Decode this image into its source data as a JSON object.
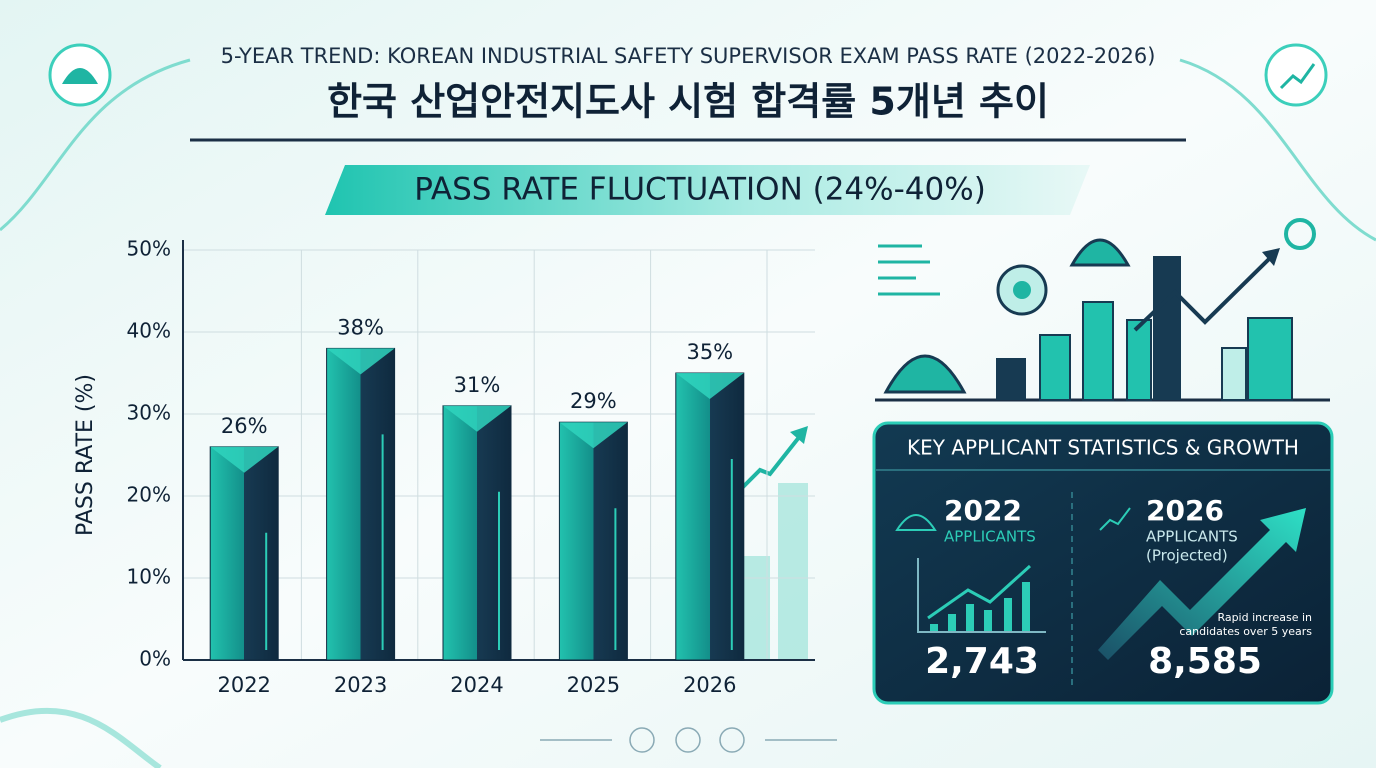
{
  "chart_data": {
    "type": "bar",
    "title": "5-YEAR TREND: KOREAN INDUSTRIAL SAFETY SUPERVISOR EXAM PASS RATE (2022-2026)",
    "subtitle": "한국 산업안전지도사 시험 합격률 5개년 추이",
    "banner": "PASS RATE FLUCTUATION (24%-40%)",
    "y_label": "PASS RATE (%)",
    "categories": [
      "2022",
      "2023",
      "2024",
      "2025",
      "2026"
    ],
    "values": [
      26,
      38,
      31,
      29,
      35
    ],
    "value_labels": [
      "26%",
      "38%",
      "31%",
      "29%",
      "35%"
    ],
    "color": "#1fb5a3",
    "ylim": [
      0,
      50
    ],
    "yticks": [
      {
        "value": 0,
        "label": "0%"
      },
      {
        "value": 10,
        "label": "10%"
      },
      {
        "value": 20,
        "label": "20%"
      },
      {
        "value": 30,
        "label": "30%"
      },
      {
        "value": 40,
        "label": "40%"
      },
      {
        "value": 50,
        "label": "50%"
      }
    ],
    "grid": true
  },
  "stats_panel": {
    "title": "KEY APPLICANT STATISTICS & GROWTH",
    "left": {
      "year": "2022",
      "label": "APPLICANTS",
      "count": "2,743"
    },
    "right": {
      "year": "2026",
      "label": "APPLICANTS",
      "note": "(Projected)",
      "count": "8,585",
      "caption": [
        "Rapid increase in",
        "candidates over 5 years"
      ]
    }
  }
}
